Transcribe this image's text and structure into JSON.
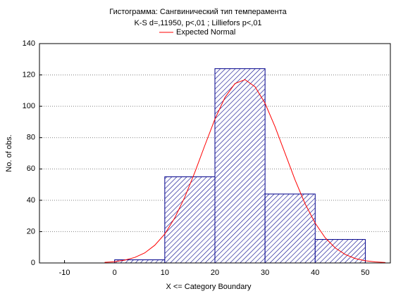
{
  "chart_data": {
    "type": "histogram",
    "title": "Гистограмма: Сангвинический тип темперамента",
    "subtitle": "K-S d=,11950, p<,01 ; Lilliefors p<,01",
    "x_label": "X <= Category Boundary",
    "y_label": "No. of obs.",
    "bins": [
      -10,
      0,
      10,
      20,
      30,
      40,
      50
    ],
    "values": [
      0,
      2,
      55,
      124,
      44,
      15
    ],
    "color": "#00008b",
    "series": [
      {
        "name": "Expected Normal",
        "color": "#ff0000",
        "x": [
          -2,
          0,
          2,
          4,
          6,
          8,
          10,
          12,
          14,
          16,
          18,
          20,
          22,
          24,
          26,
          28,
          30,
          32,
          34,
          36,
          38,
          40,
          42,
          44,
          46,
          48,
          50,
          52,
          54
        ],
        "values": [
          0.4,
          0.8,
          1.8,
          3.5,
          6.4,
          11.3,
          18.5,
          28.8,
          42.1,
          57.9,
          75.1,
          91.8,
          105.6,
          114.5,
          117,
          112.5,
          101.9,
          86.9,
          69.9,
          52.9,
          37.7,
          25.4,
          16.1,
          9.6,
          5.4,
          2.8,
          1.4,
          0.7,
          0.3
        ]
      }
    ],
    "xlim": [
      -15,
      55
    ],
    "ylim": [
      0,
      140
    ],
    "xticks": [
      -10,
      0,
      10,
      20,
      30,
      40,
      50
    ],
    "yticks": [
      0,
      20,
      40,
      60,
      80,
      100,
      120,
      140
    ],
    "grid": true
  }
}
